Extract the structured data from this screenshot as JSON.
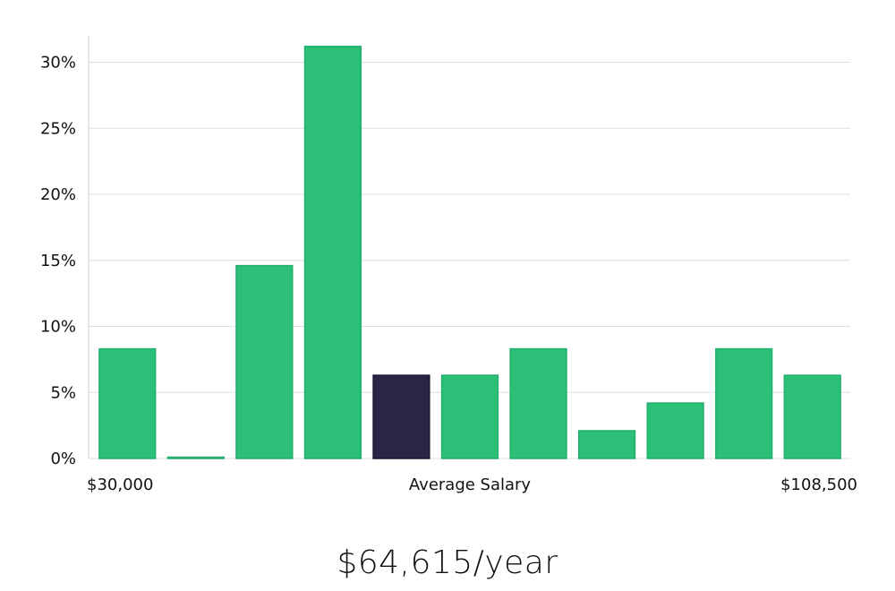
{
  "chart_data": {
    "type": "bar",
    "y_unit": "%",
    "values": [
      8.3,
      0.1,
      14.6,
      31.2,
      6.3,
      6.3,
      8.3,
      2.1,
      4.2,
      8.3,
      6.3
    ],
    "highlight_index": 4,
    "ylim": [
      0,
      32
    ],
    "yticks": [
      0,
      5,
      10,
      15,
      20,
      25,
      30
    ],
    "ytick_labels": [
      "0%",
      "5%",
      "10%",
      "15%",
      "20%",
      "25%",
      "30%"
    ],
    "x_min_label": "$30,000",
    "x_center_label": "Average Salary",
    "x_max_label": "$108,500",
    "grid": true,
    "legend": "none"
  },
  "colors": {
    "bar": "#2bbf78",
    "bar_border": "#22b06c",
    "highlight": "#282546",
    "highlight_border": "#1b1a33"
  },
  "caption": "$64,615/year"
}
